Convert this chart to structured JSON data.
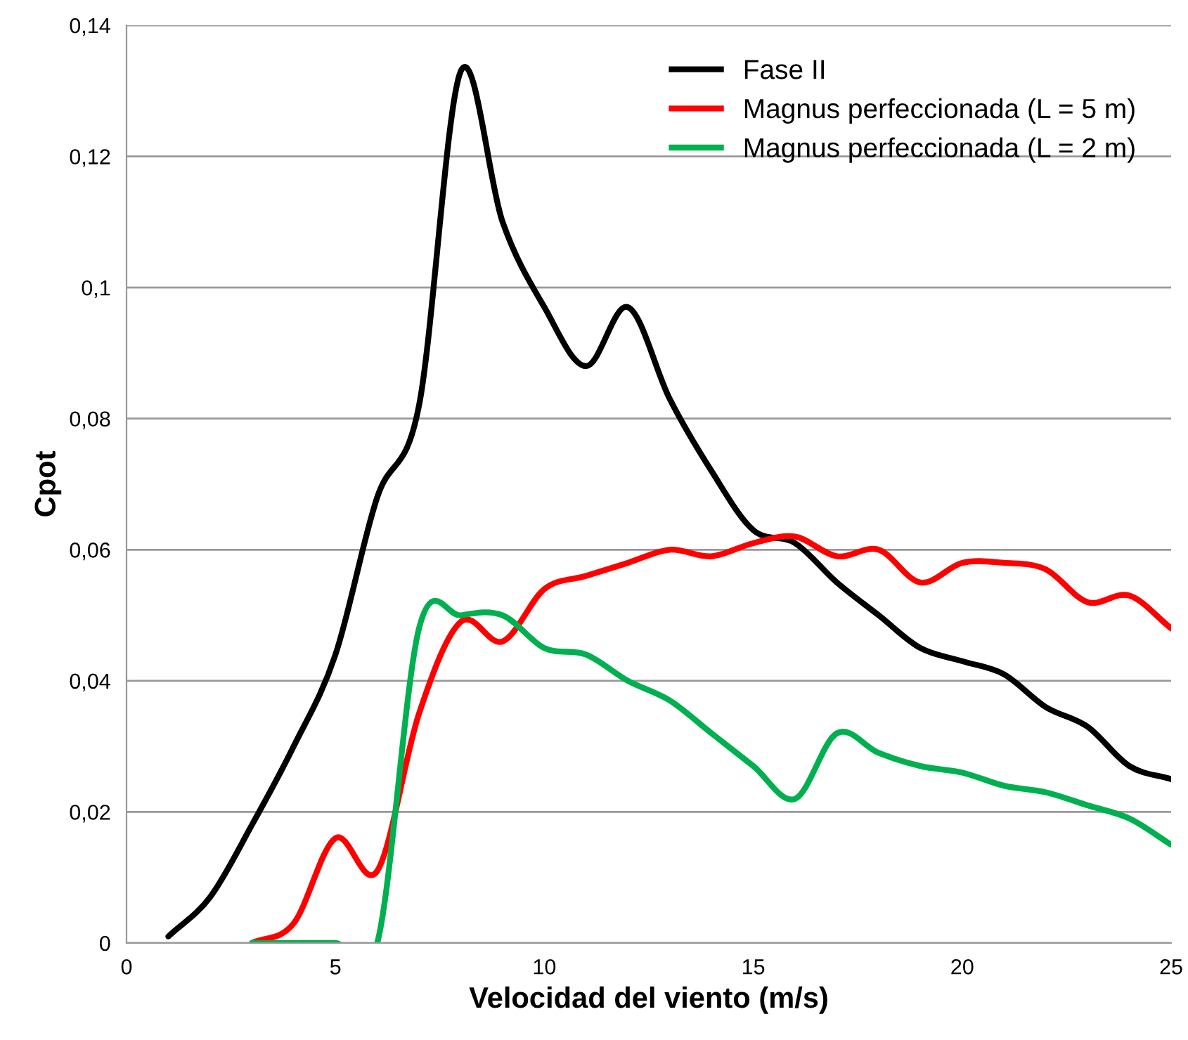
{
  "chart_data": {
    "type": "line",
    "xlabel": "Velocidad del viento (m/s)",
    "ylabel": "Cpot",
    "xlim": [
      0,
      25
    ],
    "xticks": [
      0,
      5,
      10,
      15,
      20,
      25
    ],
    "ylim": [
      0,
      0.14
    ],
    "yticks": [
      {
        "value": 0,
        "label": "0"
      },
      {
        "value": 0.02,
        "label": "0,02"
      },
      {
        "value": 0.04,
        "label": "0,04"
      },
      {
        "value": 0.06,
        "label": "0,06"
      },
      {
        "value": 0.08,
        "label": "0,08"
      },
      {
        "value": 0.1,
        "label": "0,1"
      },
      {
        "value": 0.12,
        "label": "0,12"
      },
      {
        "value": 0.14,
        "label": "0,14"
      }
    ],
    "grid": "y",
    "legend": "top right",
    "marker": "none",
    "line_style": "solid",
    "series": [
      {
        "name": "Fase II",
        "color": "#000000",
        "x": [
          1,
          2,
          3,
          4,
          5,
          6,
          7,
          8,
          9,
          10,
          11,
          12,
          13,
          14,
          15,
          16,
          17,
          18,
          19,
          20,
          21,
          22,
          23,
          24,
          25
        ],
        "values": [
          0.001,
          0.007,
          0.018,
          0.03,
          0.044,
          0.068,
          0.082,
          0.133,
          0.11,
          0.097,
          0.088,
          0.097,
          0.083,
          0.072,
          0.063,
          0.061,
          0.055,
          0.05,
          0.045,
          0.043,
          0.041,
          0.036,
          0.033,
          0.027,
          0.025
        ]
      },
      {
        "name": "Magnus perfeccionada (L = 5 m)",
        "color": "#ff0000",
        "x": [
          3,
          4,
          5,
          6,
          7,
          8,
          9,
          10,
          11,
          12,
          13,
          14,
          15,
          16,
          17,
          18,
          19,
          20,
          21,
          22,
          23,
          24,
          25
        ],
        "values": [
          0.0,
          0.003,
          0.016,
          0.011,
          0.035,
          0.049,
          0.046,
          0.054,
          0.056,
          0.058,
          0.06,
          0.059,
          0.061,
          0.062,
          0.059,
          0.06,
          0.055,
          0.058,
          0.058,
          0.057,
          0.052,
          0.053,
          0.048
        ]
      },
      {
        "name": "Magnus perfeccionada (L = 2 m)",
        "color": "#00b050",
        "x": [
          3,
          4,
          5,
          6,
          7,
          8,
          9,
          10,
          11,
          12,
          13,
          14,
          15,
          16,
          17,
          18,
          19,
          20,
          21,
          22,
          23,
          24,
          25
        ],
        "values": [
          0.0,
          0.0,
          0.0,
          0.0,
          0.048,
          0.05,
          0.05,
          0.045,
          0.044,
          0.04,
          0.037,
          0.032,
          0.027,
          0.022,
          0.032,
          0.029,
          0.027,
          0.026,
          0.024,
          0.023,
          0.021,
          0.019,
          0.015
        ]
      }
    ]
  }
}
